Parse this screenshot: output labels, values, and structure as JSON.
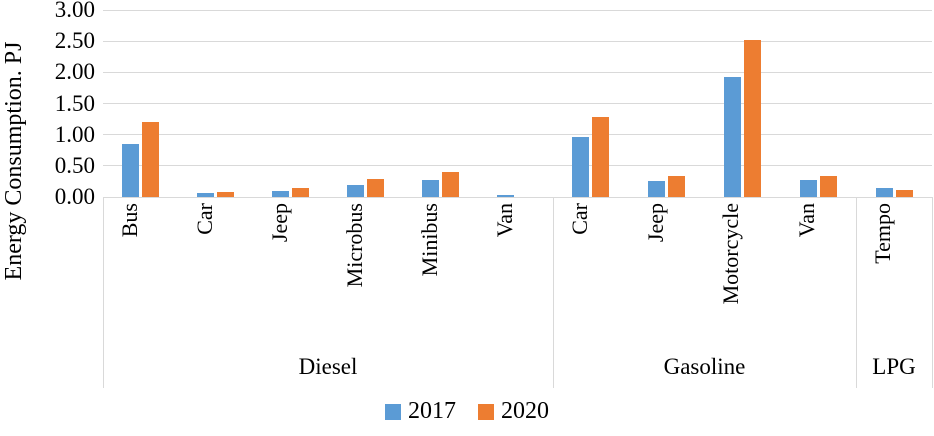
{
  "chart_data": {
    "type": "bar",
    "title": "",
    "ylabel": "Energy Consumption. PJ",
    "xlabel": "",
    "ylim": [
      0,
      3.0
    ],
    "ytick_step": 0.5,
    "ytick_labels": [
      "0.00",
      "0.50",
      "1.00",
      "1.50",
      "2.00",
      "2.50",
      "3.00"
    ],
    "grid": "horizontal",
    "legend_position": "bottom",
    "series_names": [
      "2017",
      "2020"
    ],
    "series_colors": [
      "#5B9BD5",
      "#ED7D31"
    ],
    "gridline_color": "#D9D9D9",
    "groups": [
      {
        "label": "Diesel",
        "categories": [
          "Bus",
          "Car",
          "Jeep",
          "Microbus",
          "Minibus",
          "Van"
        ],
        "series": [
          {
            "name": "2017",
            "values": [
              0.85,
              0.06,
              0.1,
              0.2,
              0.28,
              0.04
            ]
          },
          {
            "name": "2020",
            "values": [
              1.2,
              0.08,
              0.14,
              0.29,
              0.4,
              0.0
            ]
          }
        ]
      },
      {
        "label": "Gasoline",
        "categories": [
          "Car",
          "Jeep",
          "Motorcycle",
          "Van"
        ],
        "series": [
          {
            "name": "2017",
            "values": [
              0.97,
              0.26,
              1.92,
              0.27
            ]
          },
          {
            "name": "2020",
            "values": [
              1.28,
              0.33,
              2.52,
              0.34
            ]
          }
        ]
      },
      {
        "label": "LPG",
        "categories": [
          "Tempo"
        ],
        "series": [
          {
            "name": "2017",
            "values": [
              0.15
            ]
          },
          {
            "name": "2020",
            "values": [
              0.12
            ]
          }
        ]
      }
    ],
    "legend": [
      {
        "label": "2017",
        "color": "#5B9BD5"
      },
      {
        "label": "2020",
        "color": "#ED7D31"
      }
    ]
  }
}
